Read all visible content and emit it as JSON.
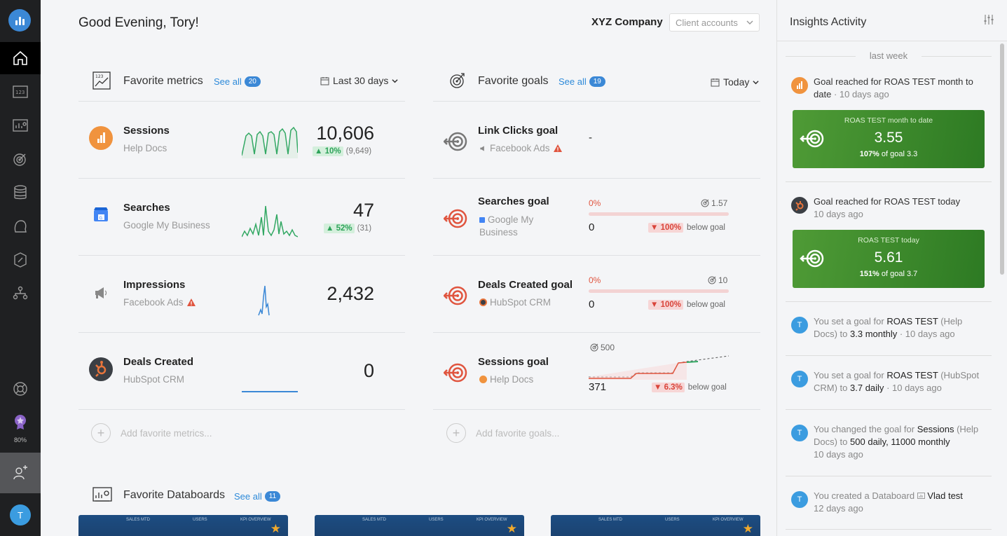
{
  "header": {
    "greeting": "Good Evening, Tory!",
    "company": "XYZ Company",
    "client_accounts": "Client accounts"
  },
  "nav": {
    "progress_label": "80%",
    "avatar_initial": "T"
  },
  "metrics": {
    "title": "Favorite metrics",
    "see_all": "See all",
    "count": "20",
    "range": "Last 30 days",
    "add_label": "Add favorite metrics...",
    "rows": [
      {
        "name": "Sessions",
        "source": "Help Docs",
        "value": "10,606",
        "delta": "10%",
        "prev": "(9,649)",
        "icon": "chart-icon",
        "color": "#f0933e"
      },
      {
        "name": "Searches",
        "source": "Google My Business",
        "value": "47",
        "delta": "52%",
        "prev": "(31)",
        "icon": "google-my-business-icon",
        "color": "#4285f4"
      },
      {
        "name": "Impressions",
        "source": "Facebook Ads",
        "value": "2,432",
        "delta": "",
        "prev": "",
        "icon": "megaphone-icon",
        "color": "#888"
      },
      {
        "name": "Deals Created",
        "source": "HubSpot CRM",
        "value": "0",
        "delta": "",
        "prev": "",
        "icon": "hubspot-icon",
        "color": "#e8743b"
      }
    ]
  },
  "goals": {
    "title": "Favorite goals",
    "see_all": "See all",
    "count": "19",
    "range": "Today",
    "add_label": "Add favorite goals...",
    "below_label": "below goal",
    "rows": [
      {
        "name": "Link Clicks goal",
        "source": "Facebook Ads",
        "value": "-"
      },
      {
        "name": "Searches goal",
        "source": "Google My Business",
        "pct": "0%",
        "target": "1.57",
        "value": "0",
        "delta": "100%"
      },
      {
        "name": "Deals Created goal",
        "source": "HubSpot CRM",
        "pct": "0%",
        "target": "10",
        "value": "0",
        "delta": "100%"
      },
      {
        "name": "Sessions goal",
        "source": "Help Docs",
        "target": "500",
        "value": "371",
        "delta": "6.3%"
      }
    ]
  },
  "databoards": {
    "title": "Favorite Databoards",
    "see_all": "See all",
    "count": "11",
    "card_labels": [
      "SALES MTD",
      "USERS",
      "KPI OVERVIEW"
    ]
  },
  "insights": {
    "title": "Insights Activity",
    "period": "last week",
    "items": [
      {
        "text": "Goal reached for ROAS TEST month to date",
        "time": "· 10 days ago",
        "card": {
          "label": "ROAS TEST month to date",
          "value": "3.55",
          "pct": "107%",
          "sub": "of goal 3.3"
        }
      },
      {
        "text": "Goal reached for ROAS TEST today",
        "time": "10 days ago",
        "card": {
          "label": "ROAS TEST today",
          "value": "5.61",
          "pct": "151%",
          "sub": "of goal 3.7"
        }
      },
      {
        "pre": "You set a goal for",
        "metric": "ROAS TEST",
        "mid": "(Help Docs) to",
        "val": "3.3 monthly",
        "time": "· 10 days ago"
      },
      {
        "pre": "You set a goal for",
        "metric": "ROAS TEST",
        "mid": "(HubSpot CRM) to",
        "val": "3.7 daily",
        "time": "· 10 days ago"
      },
      {
        "pre": "You changed the goal for",
        "metric": "Sessions",
        "mid": "(Help Docs) to",
        "val": "500 daily, 11000 monthly",
        "time": "10 days ago"
      },
      {
        "pre": "You created a Databoard",
        "metric": "Vlad test",
        "time": "12 days ago"
      }
    ]
  }
}
